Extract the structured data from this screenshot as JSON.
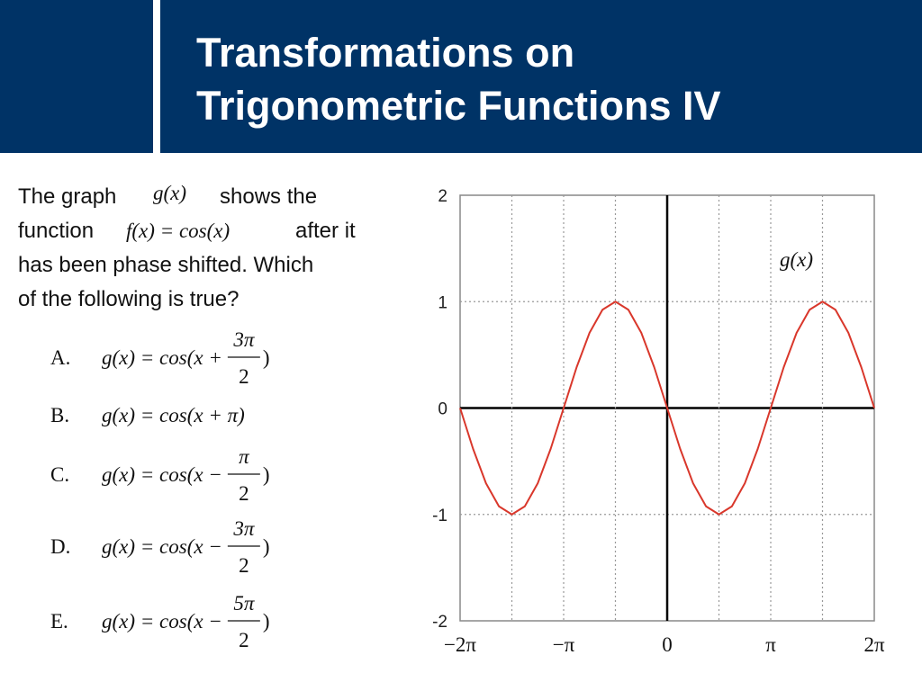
{
  "header": {
    "title_lines": [
      "Transformations on",
      "Trigonometric Functions IV"
    ]
  },
  "question": {
    "pieces": [
      "The graph",
      "g(x)",
      "shows the",
      "function",
      "f(x) = cos(x)",
      "after it",
      "has been phase shifted.  Which",
      "of the following is true?"
    ]
  },
  "options": [
    {
      "label": "A.",
      "expr": "g(x) = cos(x +",
      "num": "3π",
      "den": "2",
      "close": ")"
    },
    {
      "label": "B.",
      "expr": "g(x) = cos(x + π)"
    },
    {
      "label": "C.",
      "expr": "g(x) = cos(x −",
      "num": "π",
      "den": "2",
      "close": ")"
    },
    {
      "label": "D.",
      "expr": "g(x) = cos(x −",
      "num": "3π",
      "den": "2",
      "close": ")"
    },
    {
      "label": "E.",
      "expr": "g(x) = cos(x −",
      "num": "5π",
      "den": "2",
      "close": ")"
    }
  ],
  "chart_data": {
    "type": "line",
    "x": [
      -6.2832,
      -5.8905,
      -5.4978,
      -5.1051,
      -4.7124,
      -4.3197,
      -3.927,
      -3.5343,
      -3.1416,
      -2.7489,
      -2.3562,
      -1.9635,
      -1.5708,
      -1.1781,
      -0.7854,
      -0.3927,
      0,
      0.3927,
      0.7854,
      1.1781,
      1.5708,
      1.9635,
      2.3562,
      2.7489,
      3.1416,
      3.5343,
      3.927,
      4.3197,
      4.7124,
      5.1051,
      5.4978,
      5.8905,
      6.2832
    ],
    "series": [
      {
        "name": "g(x)",
        "color": "#d9372b",
        "values": [
          0,
          -0.3827,
          -0.7071,
          -0.9239,
          -1,
          -0.9239,
          -0.7071,
          -0.3827,
          0,
          0.3827,
          0.7071,
          0.9239,
          1,
          0.9239,
          0.7071,
          0.3827,
          0,
          -0.3827,
          -0.7071,
          -0.9239,
          -1,
          -0.9239,
          -0.7071,
          -0.3827,
          0,
          0.3827,
          0.7071,
          0.9239,
          1,
          0.9239,
          0.7071,
          0.3827,
          0
        ]
      }
    ],
    "xlim": [
      -6.2832,
      6.2832
    ],
    "ylim": [
      -2,
      2
    ],
    "xticks": [
      {
        "value": -6.2832,
        "label": "−2π"
      },
      {
        "value": -3.1416,
        "label": "−π"
      },
      0,
      {
        "value": 3.1416,
        "label": "π"
      },
      {
        "value": 6.2832,
        "label": "2π"
      }
    ],
    "xminor": [
      -4.7124,
      -1.5708,
      1.5708,
      4.7124
    ],
    "yticks": [
      -2,
      -1,
      0,
      1,
      2
    ],
    "grid": true
  }
}
